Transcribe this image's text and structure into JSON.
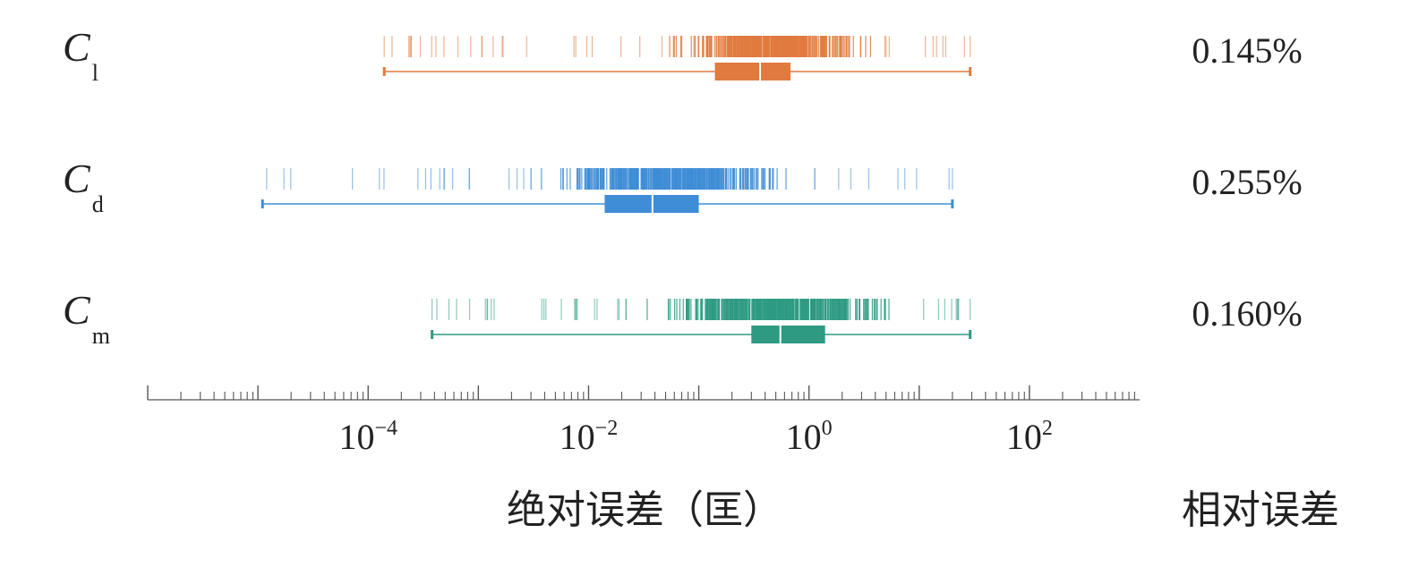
{
  "chart_data": {
    "type": "strip-box",
    "x_scale": "log10",
    "xlim": [
      1e-06,
      1000
    ],
    "xlabel": "绝对误差（匡）",
    "right_column_title": "相对误差",
    "ticks": [
      {
        "value": 0.0001,
        "base": "10",
        "exp": "−4"
      },
      {
        "value": 0.01,
        "base": "10",
        "exp": "−2"
      },
      {
        "value": 1,
        "base": "10",
        "exp": "0"
      },
      {
        "value": 100,
        "base": "10",
        "exp": "2"
      }
    ],
    "series": [
      {
        "name": "C_l",
        "label_main": "C",
        "label_sub": "l",
        "color": "#E07A3E",
        "relative_error": "0.145%",
        "whisker_min": 0.00014,
        "whisker_max": 29,
        "q1": 0.14,
        "median": 0.36,
        "q3": 0.68,
        "dense_range": [
          0.05,
          4.0
        ],
        "tick_range": [
          0.00014,
          29
        ]
      },
      {
        "name": "C_d",
        "label_main": "C",
        "label_sub": "d",
        "color": "#3E8DD6",
        "relative_error": "0.255%",
        "whisker_min": 1.1e-05,
        "whisker_max": 20,
        "q1": 0.014,
        "median": 0.038,
        "q3": 0.1,
        "dense_range": [
          0.003,
          0.9
        ],
        "tick_range": [
          1.2e-05,
          20
        ]
      },
      {
        "name": "C_m",
        "label_main": "C",
        "label_sub": "m",
        "color": "#2E9A82",
        "relative_error": "0.160%",
        "whisker_min": 0.00038,
        "whisker_max": 29,
        "q1": 0.3,
        "median": 0.55,
        "q3": 1.4,
        "dense_range": [
          0.03,
          9.0
        ],
        "tick_range": [
          0.00038,
          29
        ]
      }
    ]
  }
}
